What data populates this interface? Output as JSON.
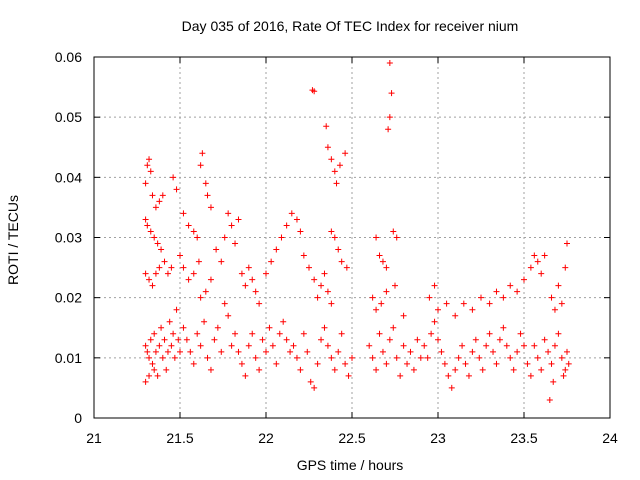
{
  "chart_data": {
    "type": "scatter",
    "title": "Day 035 of 2016, Rate Of TEC Index for receiver nium",
    "xlabel": "GPS time / hours",
    "ylabel": "ROTI / TECUs",
    "xlim": [
      21,
      24
    ],
    "ylim": [
      0,
      0.06
    ],
    "x_ticks": [
      "21",
      "21.5",
      "22",
      "22.5",
      "23",
      "23.5",
      "24"
    ],
    "y_ticks": [
      "0",
      "0.01",
      "0.02",
      "0.03",
      "0.04",
      "0.05",
      "0.06"
    ],
    "grid": true,
    "marker": "+",
    "color": "#ff0000",
    "series": [
      {
        "name": "ROTI",
        "points": [
          [
            21.3,
            0.039
          ],
          [
            21.31,
            0.042
          ],
          [
            21.32,
            0.043
          ],
          [
            21.33,
            0.041
          ],
          [
            21.34,
            0.037
          ],
          [
            21.36,
            0.035
          ],
          [
            21.38,
            0.036
          ],
          [
            21.4,
            0.037
          ],
          [
            21.3,
            0.033
          ],
          [
            21.31,
            0.032
          ],
          [
            21.33,
            0.031
          ],
          [
            21.35,
            0.03
          ],
          [
            21.37,
            0.029
          ],
          [
            21.39,
            0.028
          ],
          [
            21.3,
            0.024
          ],
          [
            21.32,
            0.023
          ],
          [
            21.34,
            0.022
          ],
          [
            21.36,
            0.024
          ],
          [
            21.38,
            0.025
          ],
          [
            21.41,
            0.026
          ],
          [
            21.43,
            0.024
          ],
          [
            21.45,
            0.025
          ],
          [
            21.3,
            0.012
          ],
          [
            21.31,
            0.011
          ],
          [
            21.32,
            0.01
          ],
          [
            21.33,
            0.013
          ],
          [
            21.34,
            0.009
          ],
          [
            21.35,
            0.014
          ],
          [
            21.36,
            0.011
          ],
          [
            21.37,
            0.007
          ],
          [
            21.38,
            0.012
          ],
          [
            21.39,
            0.015
          ],
          [
            21.4,
            0.01
          ],
          [
            21.41,
            0.013
          ],
          [
            21.42,
            0.008
          ],
          [
            21.43,
            0.011
          ],
          [
            21.44,
            0.016
          ],
          [
            21.45,
            0.012
          ],
          [
            21.46,
            0.014
          ],
          [
            21.47,
            0.01
          ],
          [
            21.48,
            0.018
          ],
          [
            21.49,
            0.013
          ],
          [
            21.5,
            0.011
          ],
          [
            21.3,
            0.006
          ],
          [
            21.32,
            0.007
          ],
          [
            21.35,
            0.008
          ],
          [
            21.46,
            0.04
          ],
          [
            21.48,
            0.038
          ],
          [
            21.52,
            0.034
          ],
          [
            21.55,
            0.032
          ],
          [
            21.58,
            0.031
          ],
          [
            21.6,
            0.03
          ],
          [
            21.62,
            0.042
          ],
          [
            21.63,
            0.044
          ],
          [
            21.65,
            0.039
          ],
          [
            21.66,
            0.037
          ],
          [
            21.68,
            0.035
          ],
          [
            21.5,
            0.027
          ],
          [
            21.52,
            0.025
          ],
          [
            21.55,
            0.023
          ],
          [
            21.58,
            0.024
          ],
          [
            21.61,
            0.026
          ],
          [
            21.52,
            0.015
          ],
          [
            21.54,
            0.013
          ],
          [
            21.56,
            0.011
          ],
          [
            21.58,
            0.009
          ],
          [
            21.6,
            0.014
          ],
          [
            21.62,
            0.012
          ],
          [
            21.64,
            0.016
          ],
          [
            21.66,
            0.01
          ],
          [
            21.68,
            0.008
          ],
          [
            21.7,
            0.013
          ],
          [
            21.72,
            0.015
          ],
          [
            21.74,
            0.011
          ],
          [
            21.76,
            0.019
          ],
          [
            21.78,
            0.017
          ],
          [
            21.8,
            0.012
          ],
          [
            21.82,
            0.014
          ],
          [
            21.62,
            0.02
          ],
          [
            21.65,
            0.021
          ],
          [
            21.68,
            0.023
          ],
          [
            21.71,
            0.028
          ],
          [
            21.74,
            0.026
          ],
          [
            21.76,
            0.03
          ],
          [
            21.78,
            0.034
          ],
          [
            21.8,
            0.032
          ],
          [
            21.82,
            0.029
          ],
          [
            21.84,
            0.033
          ],
          [
            21.86,
            0.024
          ],
          [
            21.88,
            0.022
          ],
          [
            21.9,
            0.025
          ],
          [
            21.92,
            0.023
          ],
          [
            21.94,
            0.021
          ],
          [
            21.96,
            0.019
          ],
          [
            21.84,
            0.011
          ],
          [
            21.86,
            0.009
          ],
          [
            21.88,
            0.007
          ],
          [
            21.9,
            0.012
          ],
          [
            21.92,
            0.014
          ],
          [
            21.94,
            0.01
          ],
          [
            21.96,
            0.008
          ],
          [
            21.98,
            0.013
          ],
          [
            22.0,
            0.011
          ],
          [
            22.02,
            0.015
          ],
          [
            22.04,
            0.012
          ],
          [
            22.06,
            0.009
          ],
          [
            22.08,
            0.014
          ],
          [
            22.1,
            0.016
          ],
          [
            22.12,
            0.013
          ],
          [
            22.14,
            0.011
          ],
          [
            22.0,
            0.024
          ],
          [
            22.03,
            0.026
          ],
          [
            22.06,
            0.028
          ],
          [
            22.09,
            0.03
          ],
          [
            22.12,
            0.032
          ],
          [
            22.15,
            0.034
          ],
          [
            22.18,
            0.033
          ],
          [
            22.2,
            0.031
          ],
          [
            22.22,
            0.027
          ],
          [
            22.25,
            0.025
          ],
          [
            22.28,
            0.023
          ],
          [
            22.3,
            0.02
          ],
          [
            22.32,
            0.022
          ],
          [
            22.34,
            0.024
          ],
          [
            22.36,
            0.021
          ],
          [
            22.38,
            0.019
          ],
          [
            22.16,
            0.012
          ],
          [
            22.18,
            0.01
          ],
          [
            22.2,
            0.008
          ],
          [
            22.22,
            0.014
          ],
          [
            22.24,
            0.011
          ],
          [
            22.26,
            0.006
          ],
          [
            22.28,
            0.005
          ],
          [
            22.3,
            0.009
          ],
          [
            22.32,
            0.013
          ],
          [
            22.34,
            0.015
          ],
          [
            22.36,
            0.012
          ],
          [
            22.38,
            0.01
          ],
          [
            22.4,
            0.008
          ],
          [
            22.42,
            0.011
          ],
          [
            22.44,
            0.014
          ],
          [
            22.46,
            0.009
          ],
          [
            22.48,
            0.007
          ],
          [
            22.5,
            0.01
          ],
          [
            22.27,
            0.0545
          ],
          [
            22.28,
            0.0543
          ],
          [
            22.35,
            0.0485
          ],
          [
            22.36,
            0.045
          ],
          [
            22.38,
            0.043
          ],
          [
            22.4,
            0.041
          ],
          [
            22.41,
            0.039
          ],
          [
            22.43,
            0.042
          ],
          [
            22.46,
            0.044
          ],
          [
            22.38,
            0.031
          ],
          [
            22.4,
            0.03
          ],
          [
            22.42,
            0.028
          ],
          [
            22.44,
            0.026
          ],
          [
            22.47,
            0.025
          ],
          [
            22.6,
            0.012
          ],
          [
            22.62,
            0.01
          ],
          [
            22.64,
            0.008
          ],
          [
            22.66,
            0.014
          ],
          [
            22.68,
            0.011
          ],
          [
            22.7,
            0.009
          ],
          [
            22.72,
            0.013
          ],
          [
            22.74,
            0.015
          ],
          [
            22.76,
            0.01
          ],
          [
            22.78,
            0.007
          ],
          [
            22.8,
            0.012
          ],
          [
            22.82,
            0.009
          ],
          [
            22.84,
            0.011
          ],
          [
            22.86,
            0.008
          ],
          [
            22.88,
            0.013
          ],
          [
            22.9,
            0.01
          ],
          [
            22.72,
            0.059
          ],
          [
            22.73,
            0.054
          ],
          [
            22.72,
            0.05
          ],
          [
            22.71,
            0.048
          ],
          [
            22.64,
            0.03
          ],
          [
            22.66,
            0.027
          ],
          [
            22.68,
            0.026
          ],
          [
            22.7,
            0.025
          ],
          [
            22.74,
            0.031
          ],
          [
            22.76,
            0.03
          ],
          [
            22.62,
            0.02
          ],
          [
            22.64,
            0.018
          ],
          [
            22.67,
            0.019
          ],
          [
            22.7,
            0.021
          ],
          [
            22.75,
            0.022
          ],
          [
            22.8,
            0.017
          ],
          [
            22.92,
            0.012
          ],
          [
            22.94,
            0.01
          ],
          [
            22.96,
            0.014
          ],
          [
            22.98,
            0.016
          ],
          [
            23.0,
            0.013
          ],
          [
            23.02,
            0.011
          ],
          [
            23.04,
            0.009
          ],
          [
            23.06,
            0.007
          ],
          [
            23.08,
            0.005
          ],
          [
            23.1,
            0.008
          ],
          [
            23.12,
            0.01
          ],
          [
            23.14,
            0.012
          ],
          [
            23.16,
            0.009
          ],
          [
            23.18,
            0.007
          ],
          [
            23.2,
            0.011
          ],
          [
            23.22,
            0.013
          ],
          [
            22.95,
            0.02
          ],
          [
            22.98,
            0.022
          ],
          [
            23.0,
            0.018
          ],
          [
            23.05,
            0.019
          ],
          [
            23.1,
            0.017
          ],
          [
            23.15,
            0.019
          ],
          [
            23.2,
            0.018
          ],
          [
            23.25,
            0.02
          ],
          [
            23.24,
            0.01
          ],
          [
            23.26,
            0.008
          ],
          [
            23.28,
            0.012
          ],
          [
            23.3,
            0.014
          ],
          [
            23.32,
            0.011
          ],
          [
            23.34,
            0.009
          ],
          [
            23.36,
            0.013
          ],
          [
            23.38,
            0.015
          ],
          [
            23.4,
            0.012
          ],
          [
            23.42,
            0.01
          ],
          [
            23.44,
            0.008
          ],
          [
            23.46,
            0.011
          ],
          [
            23.48,
            0.014
          ],
          [
            23.5,
            0.012
          ],
          [
            23.52,
            0.009
          ],
          [
            23.54,
            0.007
          ],
          [
            23.3,
            0.019
          ],
          [
            23.34,
            0.021
          ],
          [
            23.38,
            0.02
          ],
          [
            23.42,
            0.022
          ],
          [
            23.46,
            0.021
          ],
          [
            23.5,
            0.023
          ],
          [
            23.54,
            0.025
          ],
          [
            23.56,
            0.027
          ],
          [
            23.58,
            0.026
          ],
          [
            23.6,
            0.024
          ],
          [
            23.62,
            0.027
          ],
          [
            23.56,
            0.012
          ],
          [
            23.58,
            0.01
          ],
          [
            23.6,
            0.008
          ],
          [
            23.62,
            0.013
          ],
          [
            23.64,
            0.011
          ],
          [
            23.66,
            0.009
          ],
          [
            23.68,
            0.012
          ],
          [
            23.7,
            0.014
          ],
          [
            23.72,
            0.01
          ],
          [
            23.74,
            0.008
          ],
          [
            23.75,
            0.011
          ],
          [
            23.66,
            0.02
          ],
          [
            23.68,
            0.018
          ],
          [
            23.7,
            0.022
          ],
          [
            23.72,
            0.019
          ],
          [
            23.74,
            0.025
          ],
          [
            23.75,
            0.029
          ],
          [
            23.65,
            0.003
          ],
          [
            23.67,
            0.006
          ],
          [
            23.73,
            0.007
          ],
          [
            23.76,
            0.009
          ]
        ]
      }
    ]
  }
}
